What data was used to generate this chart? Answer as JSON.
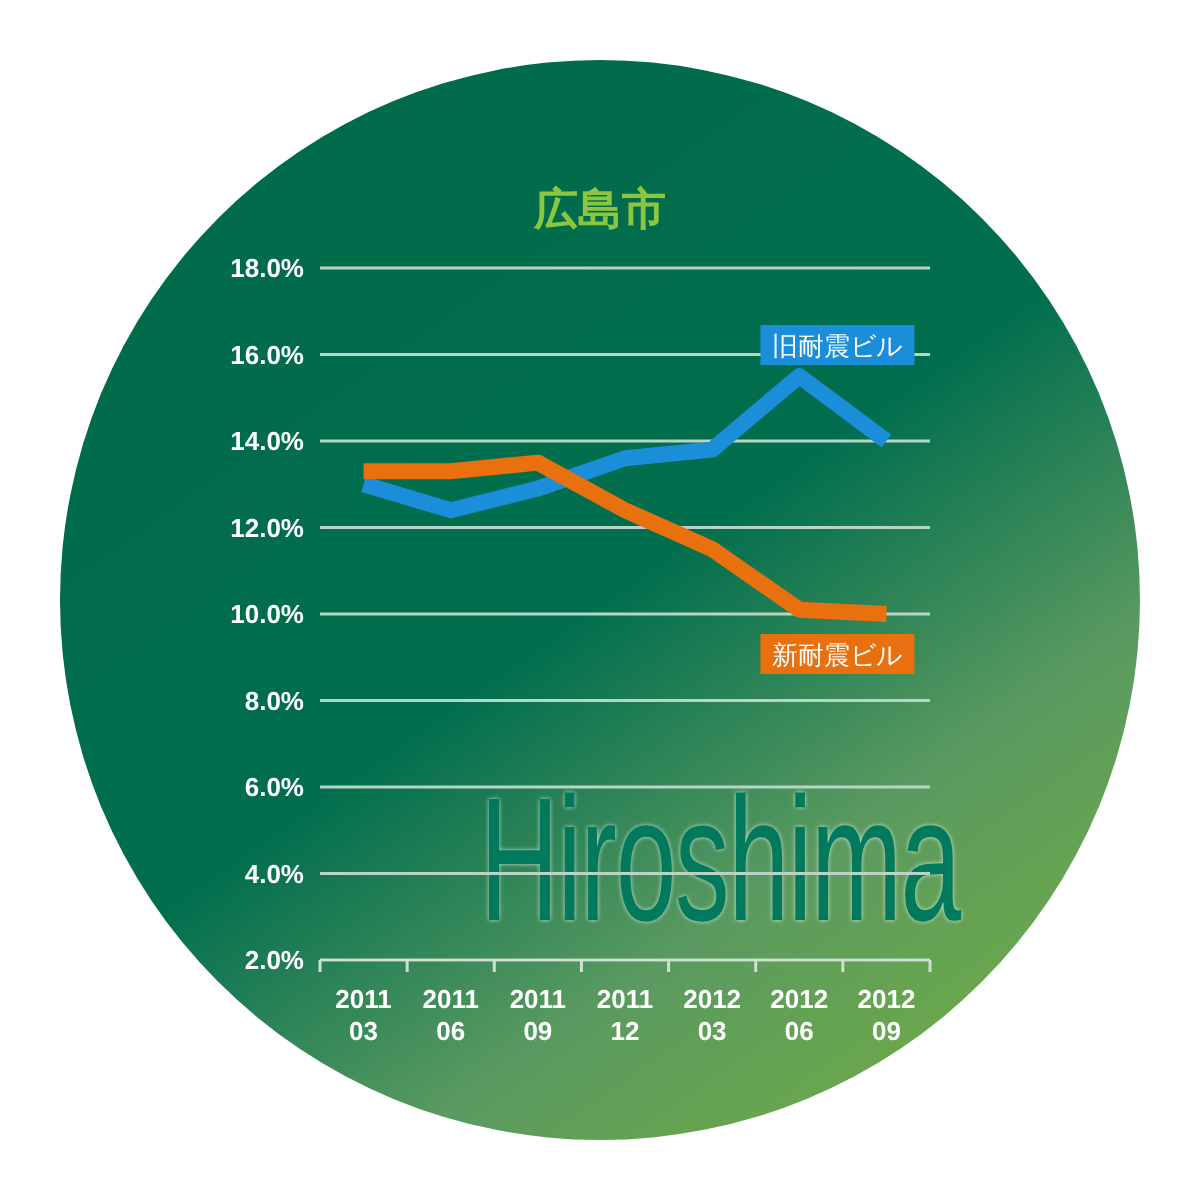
{
  "chart_data": {
    "type": "line",
    "title": "広島市",
    "categories": [
      "2011\n03",
      "2011\n06",
      "2011\n09",
      "2011\n12",
      "2012\n03",
      "2012\n06",
      "2012\n09"
    ],
    "series": [
      {
        "name": "旧耐震ビル",
        "color": "#1a8ed8",
        "values": [
          13.0,
          12.4,
          12.9,
          13.6,
          13.8,
          15.5,
          14.0
        ]
      },
      {
        "name": "新耐震ビル",
        "color": "#e8700e",
        "values": [
          13.3,
          13.3,
          13.5,
          12.4,
          11.5,
          10.1,
          10.0
        ]
      }
    ],
    "ylim": [
      2,
      18
    ],
    "yticks": [
      {
        "value": 2,
        "label": "2.0%"
      },
      {
        "value": 4,
        "label": "4.0%"
      },
      {
        "value": 6,
        "label": "6.0%"
      },
      {
        "value": 8,
        "label": "8.0%"
      },
      {
        "value": 10,
        "label": "10.0%"
      },
      {
        "value": 12,
        "label": "12.0%"
      },
      {
        "value": 14,
        "label": "14.0%"
      },
      {
        "value": 16,
        "label": "16.0%"
      },
      {
        "value": 18,
        "label": "18.0%"
      }
    ],
    "grid": "y",
    "legend": false,
    "marker": "none",
    "line_style": "solid",
    "annotations": [
      "Hiroshima"
    ]
  }
}
